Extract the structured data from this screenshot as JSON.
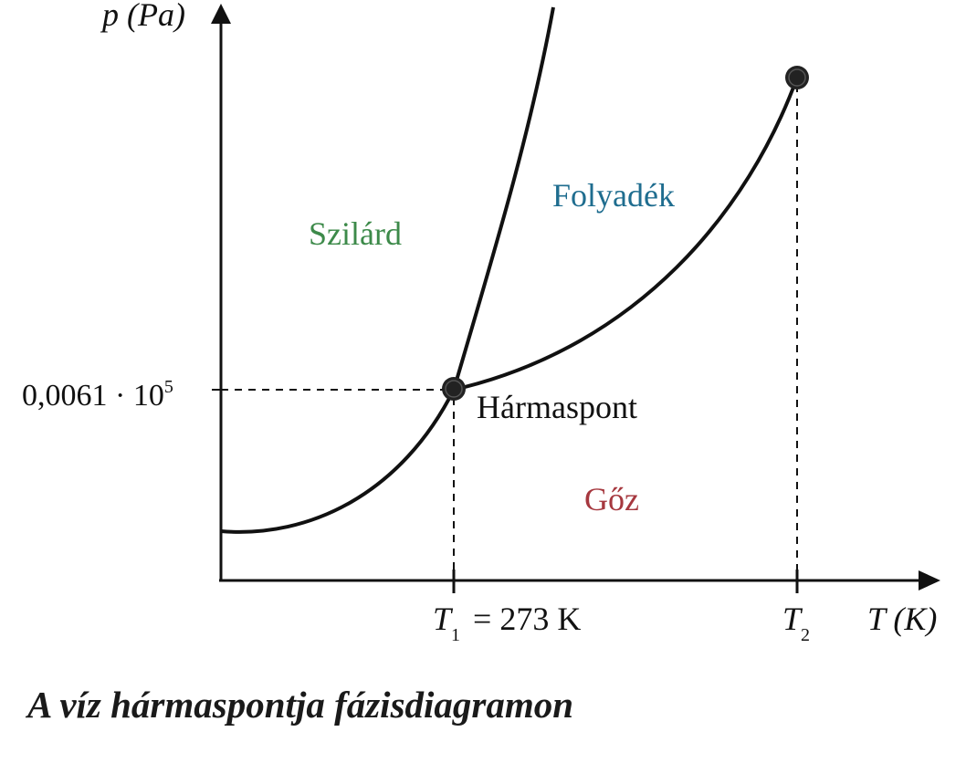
{
  "axes": {
    "y_label": "p (Pa)",
    "x_label": "T (K)"
  },
  "ticks": {
    "y_mantissa": "0,0061 · 10",
    "y_exponent": "5",
    "t1_letter": "T",
    "t1_sub": "1",
    "t1_rest": "= 273 K",
    "t2_letter": "T",
    "t2_sub": "2"
  },
  "regions": {
    "solid": "Szilárd",
    "liquid": "Folyadék",
    "gas": "Gőz"
  },
  "points": {
    "triple": "Hármaspont"
  },
  "colors": {
    "solid": "#3d8a4a",
    "liquid": "#1f6d8f",
    "gas": "#a6383f",
    "curves": "#111111"
  },
  "caption": "A víz hármaspontja fázisdiagramon"
}
